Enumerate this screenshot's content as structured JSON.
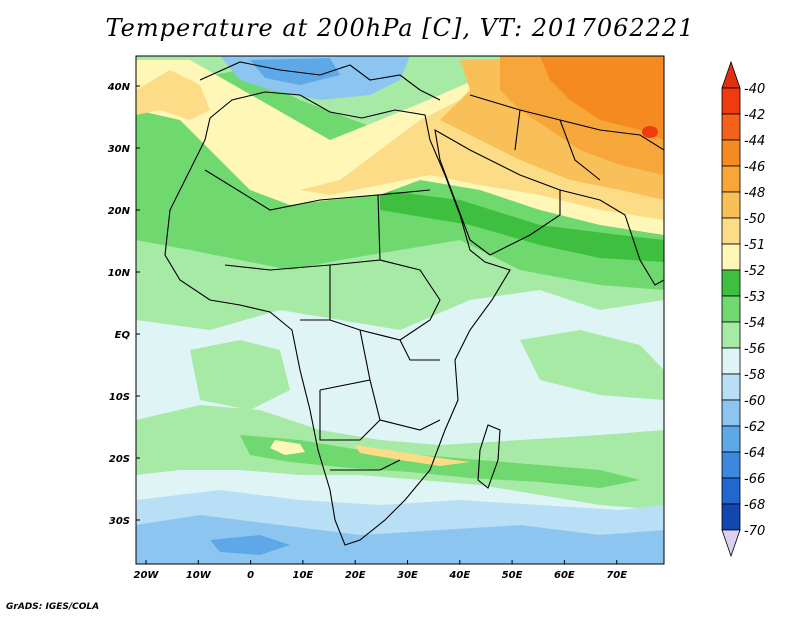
{
  "title": "Temperature at 200hPa [C], VT: 2017062221",
  "credit": "GrADS: IGES/COLA",
  "lat_labels": [
    "40N",
    "30N",
    "20N",
    "10N",
    "EQ",
    "10S",
    "20S",
    "30S"
  ],
  "lon_labels": [
    "20W",
    "10W",
    "0",
    "10E",
    "20E",
    "30E",
    "40E",
    "50E",
    "60E",
    "70E"
  ],
  "colorbar": {
    "labels": [
      "-40",
      "-42",
      "-44",
      "-46",
      "-48",
      "-50",
      "-51",
      "-52",
      "-53",
      "-54",
      "-56",
      "-58",
      "-60",
      "-62",
      "-64",
      "-66",
      "-68",
      "-70"
    ],
    "colors": [
      "#f03a10",
      "#f4611a",
      "#f58b20",
      "#f7a73a",
      "#f9c05a",
      "#fcdc86",
      "#fff7b8",
      "#3fbf3f",
      "#6fd86f",
      "#a6eaa6",
      "#dff5f5",
      "#b8dff5",
      "#8cc6f0",
      "#5ea8e8",
      "#3d88df",
      "#2266cf",
      "#1246b0",
      "#0a1f80"
    ],
    "top_arrow_color": "#e03010",
    "bottom_arrow_color": "#dcd0f0"
  },
  "map_colors": {
    "background": "#dff5f5",
    "green_light": "#a6eaa6",
    "green": "#6fd86f",
    "green_dark": "#3fbf3f",
    "yellow_pale": "#fff7b8",
    "yellow": "#fcdc86",
    "orange_light": "#f9c05a",
    "orange": "#f7a73a",
    "orange_dark": "#f58b20",
    "red": "#f03a10",
    "blue_light": "#b8dff5",
    "blue": "#8cc6f0",
    "blue_mid": "#5ea8e8"
  }
}
